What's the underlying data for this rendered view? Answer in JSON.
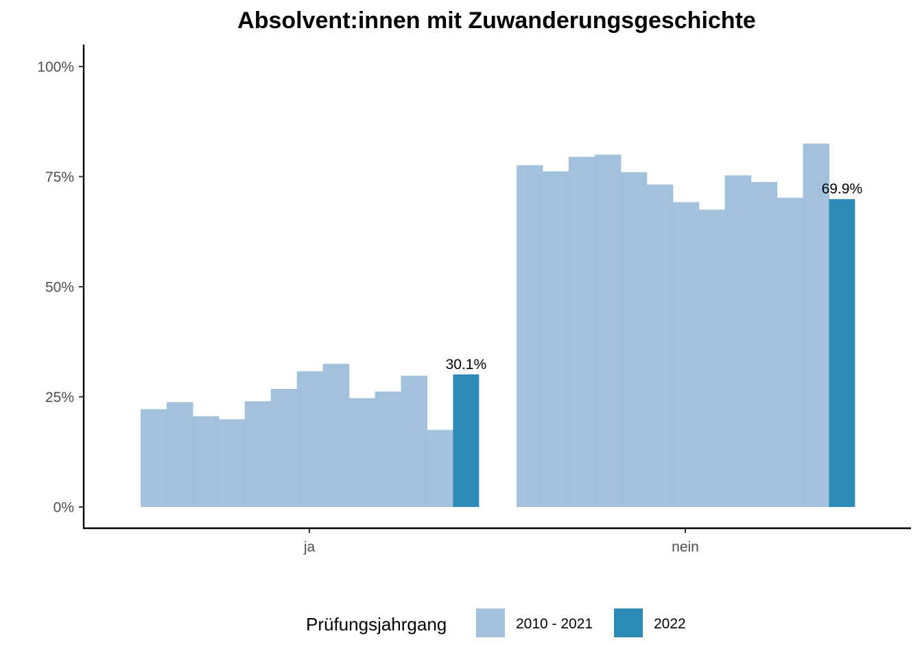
{
  "chart_data": {
    "type": "bar",
    "title": "Absolvent:innen mit Zuwanderungsgeschichte",
    "xlabel": "",
    "ylabel": "",
    "categories": [
      "ja",
      "nein"
    ],
    "y_ticks": [
      "0%",
      "25%",
      "50%",
      "75%",
      "100%"
    ],
    "ylim": [
      0,
      100
    ],
    "grid": false,
    "legend": {
      "title": "Prüfungsjahrgang",
      "position": "bottom",
      "entries": [
        {
          "label": "2010 - 2021",
          "color": "#a1c1dc"
        },
        {
          "label": "2022",
          "color": "#2e8bb7"
        }
      ]
    },
    "series": [
      {
        "name": "2010 - 2021",
        "color": "#a1c1dc",
        "values": {
          "ja": [
            22.2,
            23.8,
            20.6,
            19.9,
            24.0,
            26.8,
            30.8,
            32.5,
            24.7,
            26.2,
            29.8,
            17.5
          ],
          "nein": [
            77.6,
            76.2,
            79.5,
            80.0,
            76.0,
            73.2,
            69.2,
            67.5,
            75.3,
            73.8,
            70.2,
            82.5
          ]
        }
      },
      {
        "name": "2022",
        "color": "#2e8bb7",
        "values": {
          "ja": 30.1,
          "nein": 69.9
        },
        "data_labels": {
          "ja": "30.1%",
          "nein": "69.9%"
        }
      }
    ]
  }
}
